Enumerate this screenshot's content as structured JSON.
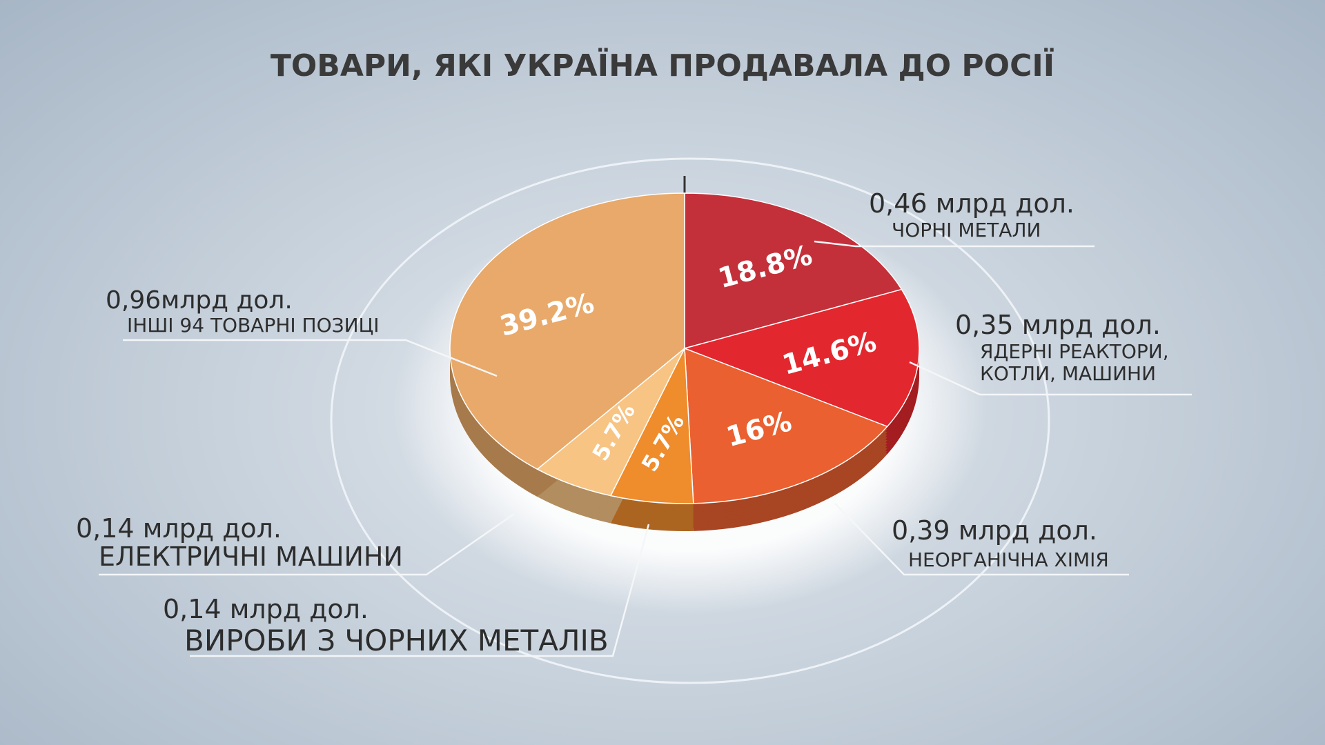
{
  "chart_data": {
    "type": "pie",
    "title": "ТОВАРИ, ЯКІ УКРАЇНА ПРОДАВАЛА ДО РОСІЇ",
    "categories": [
      "ЧОРНІ МЕТАЛИ",
      "ЯДЕРНІ РЕАКТОРИ,\nКОТЛИ, МАШИНИ",
      "НЕОРГАНІЧНА ХІМІЯ",
      "ВИРОБИ З ЧОРНИХ МЕТАЛІВ",
      "ЕЛЕКТРИЧНІ МАШИНИ",
      "ІНШІ 94 ТОВАРНІ ПОЗИЦІ"
    ],
    "values": [
      18.8,
      14.6,
      16,
      5.7,
      5.7,
      39.2
    ],
    "value_labels": [
      "18.8%",
      "14.6%",
      "16%",
      "5.7%",
      "5.7%",
      "39.2%"
    ],
    "amount_labels": [
      "0,46 млрд дол.",
      "0,35 млрд дол.",
      "0,39 млрд дол.",
      "0,14 млрд дол.",
      "0,14 млрд дол.",
      "0,96млрд дол."
    ],
    "colors": [
      "#c4303a",
      "#e2282e",
      "#ea6030",
      "#ef8c2c",
      "#f7c484",
      "#e8a96a"
    ]
  }
}
